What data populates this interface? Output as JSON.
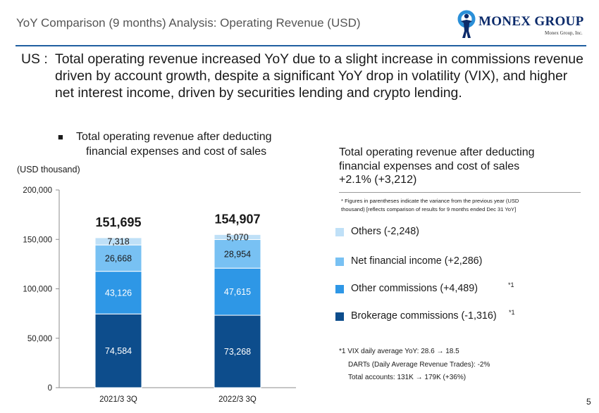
{
  "header": {
    "title": "YoY Comparison (9 months) Analysis: Operating Revenue (USD)",
    "logo_text": "MONEX GROUP",
    "logo_sub": "Monex Group, Inc."
  },
  "summary": {
    "prefix": "US :",
    "text": "Total operating revenue increased YoY due to a slight increase in commissions revenue driven by account growth, despite a significant YoY drop in volatility (VIX), and higher net interest income, driven by securities lending and crypto lending."
  },
  "chart_heading": {
    "bullet": "■",
    "line1": "Total operating revenue after deducting",
    "line2": "financial expenses and cost of sales"
  },
  "unit_label": "(USD thousand)",
  "chart_data": {
    "type": "bar",
    "stacked": true,
    "categories": [
      "2021/3 3Q",
      "2022/3 3Q"
    ],
    "series": [
      {
        "name": "Brokerage commissions",
        "values": [
          74584,
          73268
        ],
        "labels": [
          "74,584",
          "73,268"
        ],
        "color": "#0d4d8c",
        "label_color": "#ffffff"
      },
      {
        "name": "Other commissions",
        "values": [
          43126,
          47615
        ],
        "labels": [
          "43,126",
          "47,615"
        ],
        "color": "#2e97e6",
        "label_color": "#ffffff"
      },
      {
        "name": "Net financial income",
        "values": [
          26668,
          28954
        ],
        "labels": [
          "26,668",
          "28,954"
        ],
        "color": "#78c1f3",
        "label_color": "#1a1a1a"
      },
      {
        "name": "Others",
        "values": [
          7318,
          5070
        ],
        "labels": [
          "7,318",
          "5,070"
        ],
        "color": "#bfe0f7",
        "label_color": "#1a1a1a"
      }
    ],
    "totals": [
      151695,
      154907
    ],
    "total_labels": [
      "151,695",
      "154,907"
    ],
    "ylim": [
      0,
      200000
    ],
    "yticks": [
      0,
      50000,
      100000,
      150000,
      200000
    ],
    "ytick_labels": [
      "0",
      "50,000",
      "100,000",
      "150,000",
      "200,000"
    ],
    "ylabel": "(USD thousand)",
    "title": "Total operating revenue after deducting financial expenses and cost of sales",
    "grid": false
  },
  "right_summary": {
    "line1": "Total operating revenue after deducting",
    "line2": "financial expenses and cost of sales",
    "line3": "+2.1%  (+3,212)",
    "note_line1": "* Figures in parentheses indicate the variance from the previous year (USD",
    "note_line2": "thousand)  [reflects comparison of results for 9 months ended Dec 31 YoY]"
  },
  "legend": [
    {
      "label": "Others (-2,248)",
      "color": "#bfe0f7",
      "sup": ""
    },
    {
      "label": "Net financial income (+2,286)",
      "color": "#78c1f3",
      "sup": ""
    },
    {
      "label": "Other commissions (+4,489)",
      "color": "#2e97e6",
      "sup": "*1"
    },
    {
      "label": "Brokerage commissions (-1,316)",
      "color": "#0d4d8c",
      "sup": "*1"
    }
  ],
  "footnote": {
    "line1": "*1 VIX daily average YoY: 28.6 → 18.5",
    "line2": "DARTs (Daily Average Revenue Trades): -2%",
    "line3": "Total accounts: 131K → 179K (+36%)"
  },
  "page_number": "5"
}
